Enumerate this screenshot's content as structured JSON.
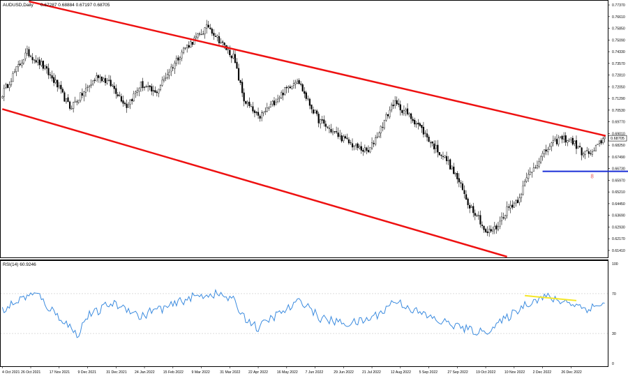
{
  "chart_data": [
    {
      "type": "candlestick",
      "symbol_label": "AUDUSD,Daily",
      "ohlc_label": "0.67287 0.68884 0.67197 0.68705",
      "last_price": "0.68705",
      "price_axis": {
        "ylim": [
          0.61,
          0.776
        ],
        "ticks": [
          "0.77370",
          "0.76610",
          "0.75850",
          "0.75090",
          "0.74330",
          "0.73570",
          "0.72810",
          "0.72050",
          "0.71290",
          "0.70530",
          "0.69770",
          "0.69010",
          "0.68250",
          "0.67490",
          "0.66730",
          "0.65970",
          "0.65210",
          "0.64450",
          "0.63690",
          "0.62930",
          "0.62170",
          "0.61410"
        ]
      },
      "time_axis": {
        "labels": [
          "4 Oct 2021",
          "26 Oct 2021",
          "17 Nov 2021",
          "9 Dec 2021",
          "31 Dec 2021",
          "24 Jan 2022",
          "15 Feb 2022",
          "9 Mar 2022",
          "31 Mar 2022",
          "22 Apr 2022",
          "16 May 2022",
          "7 Jun 2022",
          "29 Jun 2022",
          "21 Jul 2022",
          "12 Aug 2022",
          "5 Sep 2022",
          "27 Sep 2022",
          "19 Oct 2022",
          "10 Nov 2022",
          "2 Dec 2022",
          "26 Dec 2022"
        ]
      },
      "close_anchors": [
        [
          0,
          0.716
        ],
        [
          6,
          0.728
        ],
        [
          14,
          0.743
        ],
        [
          22,
          0.735
        ],
        [
          30,
          0.723
        ],
        [
          38,
          0.707
        ],
        [
          46,
          0.717
        ],
        [
          54,
          0.728
        ],
        [
          62,
          0.721
        ],
        [
          70,
          0.708
        ],
        [
          78,
          0.722
        ],
        [
          86,
          0.716
        ],
        [
          94,
          0.731
        ],
        [
          102,
          0.745
        ],
        [
          110,
          0.753
        ],
        [
          116,
          0.76
        ],
        [
          124,
          0.748
        ],
        [
          130,
          0.74
        ],
        [
          136,
          0.712
        ],
        [
          144,
          0.7
        ],
        [
          150,
          0.707
        ],
        [
          158,
          0.717
        ],
        [
          166,
          0.726
        ],
        [
          172,
          0.711
        ],
        [
          178,
          0.699
        ],
        [
          184,
          0.693
        ],
        [
          190,
          0.688
        ],
        [
          198,
          0.682
        ],
        [
          206,
          0.678
        ],
        [
          214,
          0.696
        ],
        [
          220,
          0.71
        ],
        [
          226,
          0.705
        ],
        [
          234,
          0.696
        ],
        [
          242,
          0.683
        ],
        [
          250,
          0.673
        ],
        [
          256,
          0.661
        ],
        [
          262,
          0.645
        ],
        [
          268,
          0.636
        ],
        [
          272,
          0.625
        ],
        [
          278,
          0.629
        ],
        [
          284,
          0.641
        ],
        [
          290,
          0.647
        ],
        [
          296,
          0.663
        ],
        [
          302,
          0.673
        ],
        [
          308,
          0.682
        ],
        [
          314,
          0.687
        ],
        [
          320,
          0.686
        ],
        [
          326,
          0.678
        ],
        [
          332,
          0.677
        ],
        [
          338,
          0.687
        ]
      ],
      "channel": {
        "upper": [
          [
            0,
            0.78
          ],
          [
            338,
            0.689
          ]
        ],
        "lower": [
          [
            0,
            0.706
          ],
          [
            284,
            0.61
          ]
        ]
      },
      "support": {
        "x": [
          304,
          354
        ],
        "y": 0.6655,
        "label": "8"
      },
      "colors": {
        "channel": "#ee1111",
        "support": "#1a2fd6",
        "bull": "#ffffff",
        "bear": "#000000"
      }
    },
    {
      "type": "line",
      "title": "RSI(14) 60.9246",
      "ylim": [
        0,
        100
      ],
      "ticks": [
        "100",
        "70",
        "30",
        "0"
      ],
      "anchors": [
        [
          0,
          53
        ],
        [
          6,
          60
        ],
        [
          14,
          68
        ],
        [
          20,
          69
        ],
        [
          26,
          56
        ],
        [
          32,
          47
        ],
        [
          38,
          37
        ],
        [
          42,
          28
        ],
        [
          48,
          48
        ],
        [
          54,
          52
        ],
        [
          60,
          60
        ],
        [
          66,
          58
        ],
        [
          72,
          54
        ],
        [
          78,
          46
        ],
        [
          84,
          53
        ],
        [
          90,
          55
        ],
        [
          96,
          58
        ],
        [
          100,
          62
        ],
        [
          106,
          66
        ],
        [
          112,
          68
        ],
        [
          118,
          70
        ],
        [
          124,
          68
        ],
        [
          130,
          63
        ],
        [
          136,
          47
        ],
        [
          144,
          35
        ],
        [
          150,
          44
        ],
        [
          156,
          50
        ],
        [
          162,
          56
        ],
        [
          168,
          63
        ],
        [
          172,
          58
        ],
        [
          178,
          46
        ],
        [
          184,
          43
        ],
        [
          190,
          41
        ],
        [
          196,
          40
        ],
        [
          204,
          43
        ],
        [
          210,
          48
        ],
        [
          216,
          55
        ],
        [
          220,
          63
        ],
        [
          226,
          59
        ],
        [
          234,
          51
        ],
        [
          240,
          47
        ],
        [
          246,
          42
        ],
        [
          252,
          40
        ],
        [
          258,
          36
        ],
        [
          264,
          33
        ],
        [
          270,
          31
        ],
        [
          276,
          36
        ],
        [
          282,
          43
        ],
        [
          288,
          51
        ],
        [
          294,
          59
        ],
        [
          300,
          64
        ],
        [
          306,
          67
        ],
        [
          312,
          63
        ],
        [
          318,
          62
        ],
        [
          324,
          58
        ],
        [
          328,
          55
        ],
        [
          334,
          57
        ],
        [
          338,
          61
        ]
      ],
      "divergence": {
        "from": [
          294,
          68
        ],
        "to": [
          323,
          63
        ]
      },
      "colors": {
        "line": "#3b8bdf",
        "divergence": "#f5e72a"
      }
    }
  ]
}
